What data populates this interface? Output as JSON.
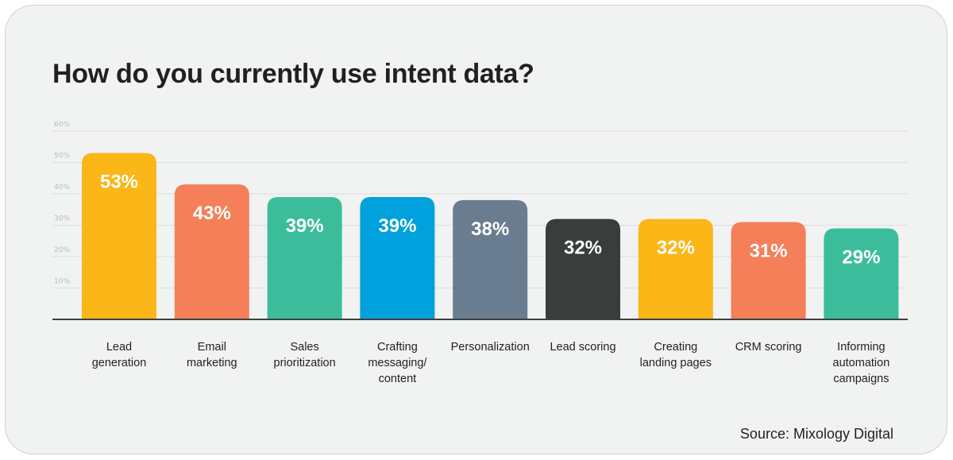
{
  "colors": {
    "background": "#f1f2f2",
    "gridline": "#dcdedf",
    "axis": "#3d4142",
    "value_label": "#ffffff"
  },
  "chart_data": {
    "type": "bar",
    "title": "How do you currently use intent data?",
    "source": "Source: Mixology Digital",
    "ylim": [
      0,
      60
    ],
    "yticks": [
      {
        "value": 10,
        "label": "10%"
      },
      {
        "value": 20,
        "label": "20%"
      },
      {
        "value": 30,
        "label": "30%"
      },
      {
        "value": 40,
        "label": "40%"
      },
      {
        "value": 50,
        "label": "50%"
      },
      {
        "value": 60,
        "label": "60%"
      }
    ],
    "grid": true,
    "categories": [
      [
        "Lead",
        "generation"
      ],
      [
        "Email",
        "marketing"
      ],
      [
        "Sales",
        "prioritization"
      ],
      [
        "Crafting",
        "messaging/",
        "content"
      ],
      [
        "Personalization"
      ],
      [
        "Lead scoring"
      ],
      [
        "Creating",
        "landing pages"
      ],
      [
        "CRM scoring"
      ],
      [
        "Informing",
        "automation",
        "campaigns"
      ]
    ],
    "values": [
      53,
      43,
      39,
      39,
      38,
      32,
      32,
      31,
      29
    ],
    "value_labels": [
      "53%",
      "43%",
      "39%",
      "39%",
      "38%",
      "32%",
      "32%",
      "31%",
      "29%"
    ],
    "bar_colors": [
      "#fbb617",
      "#f47f58",
      "#3bbd9b",
      "#00a1dc",
      "#6a7c8f",
      "#393d3c",
      "#fbb617",
      "#f47f58",
      "#3bbd9b"
    ]
  }
}
